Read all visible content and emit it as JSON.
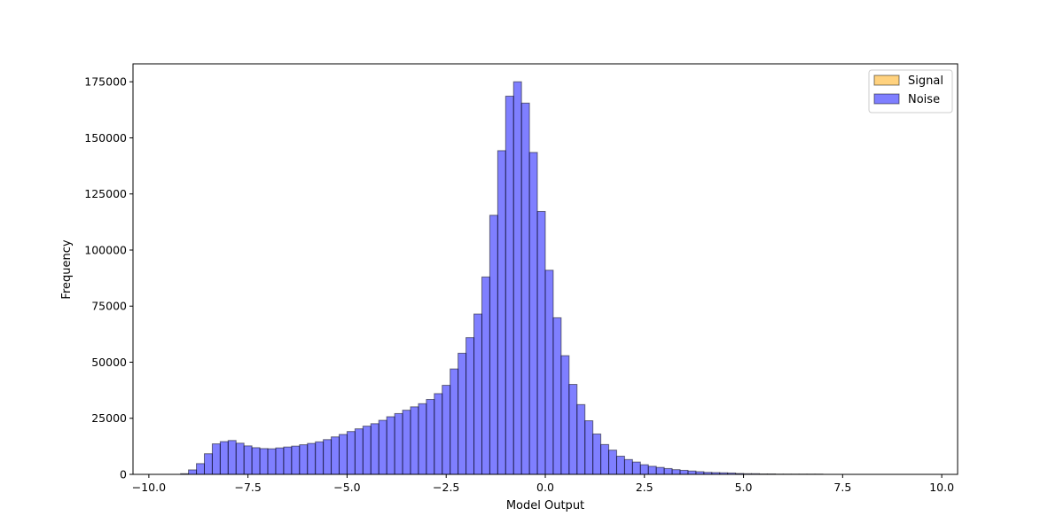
{
  "chart_data": {
    "type": "bar",
    "title": "",
    "xlabel": "Model Output",
    "ylabel": "Frequency",
    "xlim": [
      -10.4,
      10.4
    ],
    "ylim": [
      0,
      183000
    ],
    "xticks": [
      -10.0,
      -7.5,
      -5.0,
      -2.5,
      0.0,
      2.5,
      5.0,
      7.5,
      10.0
    ],
    "xtick_labels": [
      "−10.0",
      "−7.5",
      "−5.0",
      "−2.5",
      "0.0",
      "2.5",
      "5.0",
      "7.5",
      "10.0"
    ],
    "yticks": [
      0,
      25000,
      50000,
      75000,
      100000,
      125000,
      150000,
      175000
    ],
    "ytick_labels": [
      "0",
      "25000",
      "50000",
      "75000",
      "100000",
      "125000",
      "150000",
      "175000"
    ],
    "grid": false,
    "legend_position": "top-right",
    "bin_width": 0.2,
    "series": [
      {
        "name": "Signal",
        "color": "#ffa500",
        "opacity": 0.5,
        "bin_start": -9.2,
        "values": []
      },
      {
        "name": "Noise",
        "color": "#0000ff",
        "opacity": 0.5,
        "bin_start": -9.2,
        "values": [
          300,
          2000,
          4800,
          9200,
          13600,
          14600,
          15100,
          13900,
          12700,
          11900,
          11500,
          11400,
          11800,
          12200,
          12600,
          13200,
          13800,
          14500,
          15500,
          16700,
          17800,
          19100,
          20300,
          21500,
          22600,
          24100,
          25700,
          27100,
          28600,
          30100,
          31500,
          33400,
          36000,
          39700,
          47000,
          54000,
          61000,
          71500,
          88000,
          115500,
          144300,
          168600,
          175000,
          165500,
          143500,
          117200,
          91000,
          69800,
          52900,
          40100,
          31100,
          23900,
          18000,
          13300,
          10800,
          8100,
          6600,
          5500,
          4300,
          3600,
          3100,
          2600,
          2100,
          1800,
          1500,
          1200,
          900,
          800,
          700,
          600,
          400,
          300,
          300,
          200,
          200,
          100,
          100,
          100,
          100,
          100,
          100,
          0,
          0,
          0,
          0,
          0,
          0,
          0,
          0,
          0,
          0,
          0,
          0,
          0
        ]
      }
    ]
  }
}
